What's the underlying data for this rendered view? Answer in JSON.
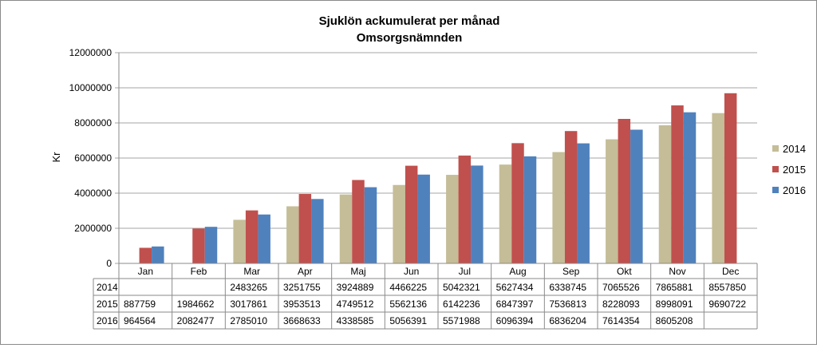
{
  "chart_data": {
    "type": "bar",
    "title": "Sjuklön ackumulerat per månad",
    "subtitle": "Omsorgsnämnden",
    "ylabel": "Kr",
    "xlabel": "",
    "ylim": [
      0,
      12000000
    ],
    "yticks": [
      0,
      2000000,
      4000000,
      6000000,
      8000000,
      10000000,
      12000000
    ],
    "ytick_labels": [
      "0",
      "2000000",
      "4000000",
      "6000000",
      "8000000",
      "10000000",
      "12000000"
    ],
    "grid": true,
    "legend_position": "right",
    "categories": [
      "Jan",
      "Feb",
      "Mar",
      "Apr",
      "Maj",
      "Jun",
      "Jul",
      "Aug",
      "Sep",
      "Okt",
      "Nov",
      "Dec"
    ],
    "series": [
      {
        "name": "2014",
        "color": "#c4bd97",
        "values": [
          null,
          null,
          2483265,
          3251755,
          3924889,
          4466225,
          5042321,
          5627434,
          6338745,
          7065526,
          7865881,
          8557850
        ],
        "labels": [
          "",
          "",
          "2483265",
          "3251755",
          "3924889",
          "4466225",
          "5042321",
          "5627434",
          "6338745",
          "7065526",
          "7865881",
          "8557850"
        ]
      },
      {
        "name": "2015",
        "color": "#c0504d",
        "values": [
          887759,
          1984662,
          3017861,
          3953513,
          4749512,
          5562136,
          6142236,
          6847397,
          7536813,
          8228093,
          8998091,
          9690722
        ],
        "labels": [
          "887759",
          "1984662",
          "3017861",
          "3953513",
          "4749512",
          "5562136",
          "6142236",
          "6847397",
          "7536813",
          "8228093",
          "8998091",
          "9690722"
        ]
      },
      {
        "name": "2016",
        "color": "#4f81bd",
        "values": [
          964564,
          2082477,
          2785010,
          3668633,
          4338585,
          5056391,
          5571988,
          6096394,
          6836204,
          7614354,
          8605208,
          null
        ],
        "labels": [
          "964564",
          "2082477",
          "2785010",
          "3668633",
          "4338585",
          "5056391",
          "5571988",
          "6096394",
          "6836204",
          "7614354",
          "8605208",
          ""
        ]
      }
    ]
  }
}
